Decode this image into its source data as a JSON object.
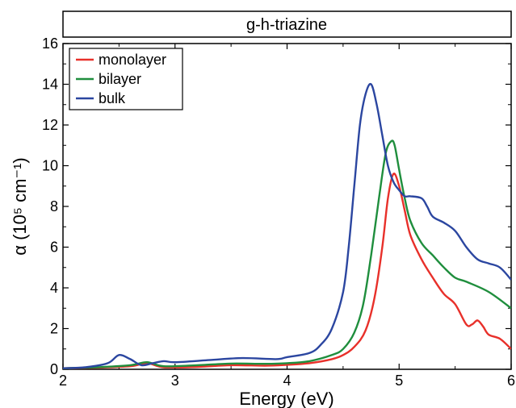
{
  "chart_data": {
    "type": "line",
    "title": "g-h-triazine",
    "xlabel": "Energy (eV)",
    "ylabel": "α (10⁵ cm⁻¹)",
    "xlim": [
      2,
      6
    ],
    "ylim": [
      0,
      16
    ],
    "xticks": [
      2,
      3,
      4,
      5,
      6
    ],
    "yticks": [
      0,
      2,
      4,
      6,
      8,
      10,
      12,
      14,
      16
    ],
    "legend_position": "top-left",
    "grid": false,
    "series": [
      {
        "name": "monolayer",
        "color": "#e8302a",
        "x": [
          2.0,
          2.3,
          2.6,
          2.75,
          2.9,
          3.2,
          3.5,
          3.8,
          4.0,
          4.2,
          4.4,
          4.5,
          4.6,
          4.7,
          4.78,
          4.85,
          4.9,
          4.95,
          5.0,
          5.05,
          5.1,
          5.2,
          5.3,
          5.4,
          5.5,
          5.6,
          5.65,
          5.7,
          5.75,
          5.8,
          5.9,
          6.0
        ],
        "y": [
          0.05,
          0.08,
          0.15,
          0.3,
          0.1,
          0.12,
          0.2,
          0.18,
          0.22,
          0.3,
          0.5,
          0.7,
          1.1,
          1.9,
          3.5,
          6.0,
          8.4,
          9.6,
          9.0,
          7.8,
          6.6,
          5.4,
          4.5,
          3.7,
          3.2,
          2.2,
          2.2,
          2.4,
          2.1,
          1.7,
          1.5,
          1.0
        ]
      },
      {
        "name": "bilayer",
        "color": "#1f8e3d",
        "x": [
          2.0,
          2.3,
          2.6,
          2.75,
          2.9,
          3.2,
          3.5,
          3.8,
          4.0,
          4.2,
          4.4,
          4.5,
          4.6,
          4.68,
          4.75,
          4.82,
          4.88,
          4.93,
          4.96,
          5.0,
          5.05,
          5.1,
          5.2,
          5.3,
          5.4,
          5.5,
          5.6,
          5.8,
          6.0
        ],
        "y": [
          0.05,
          0.1,
          0.2,
          0.35,
          0.15,
          0.2,
          0.28,
          0.27,
          0.3,
          0.4,
          0.7,
          1.0,
          1.8,
          3.2,
          5.6,
          8.4,
          10.6,
          11.2,
          11.0,
          9.8,
          8.4,
          7.3,
          6.2,
          5.6,
          5.0,
          4.5,
          4.3,
          3.8,
          3.0
        ]
      },
      {
        "name": "bulk",
        "color": "#2b46a0",
        "x": [
          2.0,
          2.2,
          2.4,
          2.5,
          2.6,
          2.7,
          2.8,
          2.9,
          3.0,
          3.3,
          3.6,
          3.9,
          4.0,
          4.2,
          4.3,
          4.4,
          4.5,
          4.55,
          4.6,
          4.65,
          4.7,
          4.75,
          4.8,
          4.85,
          4.9,
          4.95,
          5.0,
          5.05,
          5.1,
          5.2,
          5.25,
          5.3,
          5.4,
          5.5,
          5.6,
          5.7,
          5.8,
          5.9,
          6.0
        ],
        "y": [
          0.05,
          0.1,
          0.3,
          0.7,
          0.5,
          0.2,
          0.3,
          0.4,
          0.35,
          0.45,
          0.55,
          0.5,
          0.6,
          0.8,
          1.2,
          2.0,
          3.8,
          6.0,
          9.0,
          12.0,
          13.5,
          14.0,
          13.0,
          11.5,
          10.0,
          9.2,
          8.8,
          8.5,
          8.5,
          8.4,
          8.0,
          7.5,
          7.2,
          6.8,
          6.0,
          5.4,
          5.2,
          5.0,
          4.4
        ]
      }
    ]
  }
}
